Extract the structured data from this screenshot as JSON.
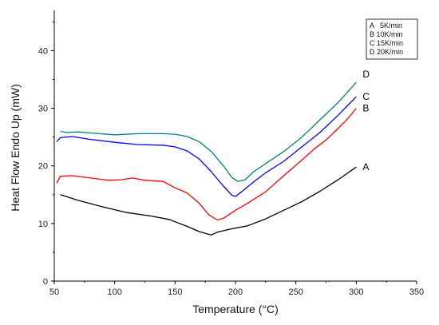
{
  "chart_data": {
    "type": "line",
    "title": "",
    "xlabel": "Temperature (°C)",
    "ylabel": "Heat Flow Endo Up (mW)",
    "xlim": [
      50,
      350
    ],
    "ylim": [
      0,
      47
    ],
    "x_ticks": [
      50,
      100,
      150,
      200,
      250,
      300,
      350
    ],
    "y_ticks": [
      0,
      10,
      20,
      30,
      40
    ],
    "grid": false,
    "legend": {
      "placement": "top-right",
      "entries": [
        "A   5K/min",
        "B 10K/min",
        "C 15K/min",
        "D 20K/min"
      ]
    },
    "series": [
      {
        "name": "A",
        "color": "#000000",
        "end_label": "A",
        "x": [
          55,
          70,
          90,
          110,
          130,
          145,
          160,
          170,
          180,
          185,
          195,
          210,
          225,
          240,
          255,
          270,
          285,
          300
        ],
        "y": [
          15.0,
          14.0,
          12.9,
          11.9,
          11.3,
          10.7,
          9.5,
          8.6,
          8.0,
          8.5,
          9.0,
          9.6,
          10.8,
          12.3,
          13.8,
          15.6,
          17.6,
          19.8
        ]
      },
      {
        "name": "B",
        "color": "#ff0000",
        "end_label": "B",
        "x": [
          52,
          55,
          65,
          80,
          95,
          105,
          115,
          125,
          140,
          150,
          160,
          170,
          178,
          185,
          190,
          200,
          210,
          225,
          240,
          255,
          265,
          275,
          285,
          293,
          300
        ],
        "y": [
          17.0,
          18.2,
          18.3,
          17.9,
          17.5,
          17.6,
          17.9,
          17.5,
          17.3,
          16.2,
          15.3,
          13.5,
          11.5,
          10.6,
          10.9,
          12.3,
          13.5,
          15.5,
          18.3,
          21.0,
          22.9,
          24.5,
          26.5,
          28.2,
          30.0
        ]
      },
      {
        "name": "C",
        "color": "#0000ff",
        "end_label": "C",
        "x": [
          52,
          55,
          65,
          80,
          100,
          120,
          140,
          150,
          160,
          170,
          180,
          190,
          197,
          200,
          205,
          215,
          225,
          240,
          255,
          270,
          285,
          300
        ],
        "y": [
          24.2,
          24.9,
          25.1,
          24.6,
          24.1,
          23.7,
          23.6,
          23.3,
          22.6,
          21.2,
          19.0,
          16.5,
          14.9,
          14.7,
          15.5,
          17.2,
          18.8,
          20.8,
          23.3,
          25.8,
          28.8,
          32.0
        ]
      },
      {
        "name": "D",
        "color": "#008080",
        "end_label": "D",
        "x": [
          55,
          60,
          70,
          80,
          100,
          120,
          140,
          150,
          160,
          170,
          180,
          190,
          197,
          202,
          208,
          215,
          225,
          240,
          255,
          270,
          285,
          300
        ],
        "y": [
          26.0,
          25.8,
          25.9,
          25.7,
          25.4,
          25.6,
          25.6,
          25.5,
          25.1,
          24.2,
          22.5,
          20.0,
          18.0,
          17.3,
          17.6,
          19.0,
          20.4,
          22.5,
          25.0,
          28.0,
          31.0,
          34.5
        ]
      }
    ]
  }
}
